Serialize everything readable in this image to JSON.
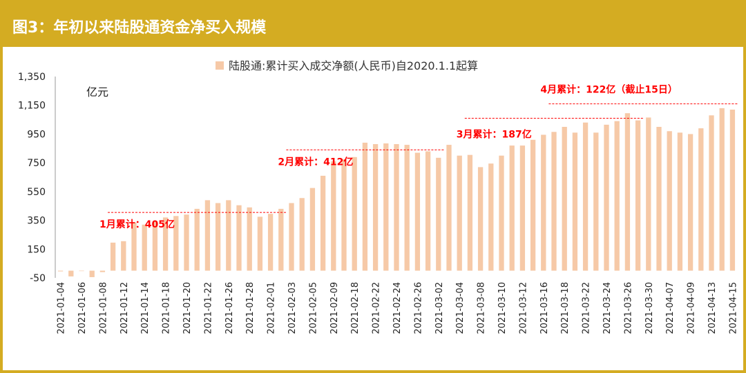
{
  "header": {
    "title": "图3：年初以来陆股通资金净买入规模"
  },
  "colors": {
    "title_bar": "#D4AC22",
    "bar": "#F6C9A7",
    "annotation": "#FF0000",
    "axis": "#999999"
  },
  "chart_data": {
    "type": "bar",
    "legend": "陆股通:累计买入成交净额(人民币)自2020.1.1起算",
    "legend_placement": "top-center",
    "unit": "亿元",
    "ylim": [
      -50,
      1350
    ],
    "yticks": [
      -50,
      150,
      350,
      550,
      750,
      950,
      1150,
      1350
    ],
    "ytick_labels": [
      "-50",
      "150",
      "350",
      "550",
      "750",
      "950",
      "1,150",
      "1,350"
    ],
    "grid": false,
    "categories": [
      "2021-01-04",
      "2021-01-05",
      "2021-01-06",
      "2021-01-07",
      "2021-01-08",
      "2021-01-11",
      "2021-01-12",
      "2021-01-13",
      "2021-01-14",
      "2021-01-15",
      "2021-01-18",
      "2021-01-19",
      "2021-01-20",
      "2021-01-21",
      "2021-01-22",
      "2021-01-25",
      "2021-01-26",
      "2021-01-27",
      "2021-01-28",
      "2021-01-29",
      "2021-02-01",
      "2021-02-02",
      "2021-02-03",
      "2021-02-04",
      "2021-02-05",
      "2021-02-08",
      "2021-02-09",
      "2021-02-10",
      "2021-02-18",
      "2021-02-19",
      "2021-02-22",
      "2021-02-23",
      "2021-02-24",
      "2021-02-25",
      "2021-02-26",
      "2021-03-01",
      "2021-03-02",
      "2021-03-03",
      "2021-03-04",
      "2021-03-05",
      "2021-03-08",
      "2021-03-09",
      "2021-03-10",
      "2021-03-11",
      "2021-03-12",
      "2021-03-15",
      "2021-03-16",
      "2021-03-17",
      "2021-03-18",
      "2021-03-19",
      "2021-03-22",
      "2021-03-23",
      "2021-03-24",
      "2021-03-25",
      "2021-03-26",
      "2021-03-29",
      "2021-03-30",
      "2021-03-31",
      "2021-04-07",
      "2021-04-08",
      "2021-04-09",
      "2021-04-12",
      "2021-04-13",
      "2021-04-14",
      "2021-04-15"
    ],
    "tick_labels": [
      "2021-01-04",
      "2021-01-06",
      "2021-01-08",
      "2021-01-12",
      "2021-01-14",
      "2021-01-18",
      "2021-01-20",
      "2021-01-22",
      "2021-01-26",
      "2021-01-28",
      "2021-02-01",
      "2021-02-03",
      "2021-02-05",
      "2021-02-09",
      "2021-02-18",
      "2021-02-22",
      "2021-02-24",
      "2021-02-26",
      "2021-03-02",
      "2021-03-04",
      "2021-03-08",
      "2021-03-10",
      "2021-03-12",
      "2021-03-16",
      "2021-03-18",
      "2021-03-22",
      "2021-03-24",
      "2021-03-26",
      "2021-03-30",
      "2021-04-07",
      "2021-04-09",
      "2021-04-13",
      "2021-04-15"
    ],
    "values": [
      -5,
      -40,
      -3,
      -45,
      -10,
      195,
      205,
      335,
      320,
      345,
      370,
      380,
      390,
      430,
      490,
      470,
      490,
      455,
      440,
      375,
      395,
      430,
      470,
      505,
      575,
      660,
      760,
      775,
      790,
      890,
      880,
      885,
      880,
      875,
      820,
      830,
      785,
      875,
      800,
      805,
      720,
      745,
      800,
      870,
      870,
      910,
      945,
      965,
      1000,
      960,
      1030,
      960,
      1015,
      1040,
      1095,
      1045,
      1065,
      1000,
      970,
      960,
      950,
      990,
      1080,
      1130,
      1120
    ],
    "annotations": [
      {
        "label": "1月累计：405亿",
        "x_start": "2021-01-11",
        "x_end": "2021-02-02",
        "y": 405
      },
      {
        "label": "2月累计：412亿",
        "x_start": "2021-02-03",
        "x_end": "2021-03-02",
        "y": 840
      },
      {
        "label": "3月累计：187亿",
        "x_start": "2021-03-05",
        "x_end": "2021-03-29",
        "y": 1060
      },
      {
        "label": "4月累计：122亿（截止15日）",
        "x_start": "2021-03-17",
        "x_end": "2021-04-15",
        "y": 1160
      }
    ]
  }
}
